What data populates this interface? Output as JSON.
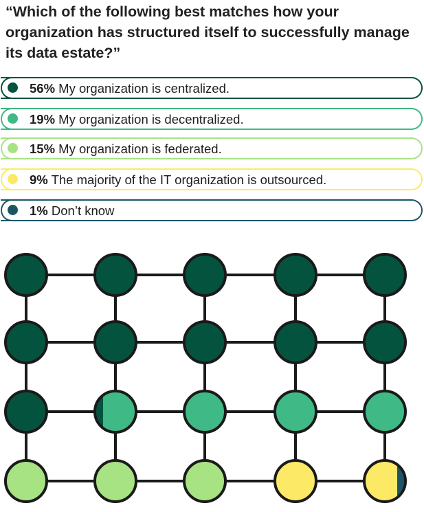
{
  "question": "“Which of the following best matches how your organization has structured itself to successfully manage its data estate?”",
  "chart_data": {
    "type": "pie",
    "title": "“Which of the following best matches how your organization has structured itself to successfully manage its data estate?”",
    "unit": "%",
    "grid": {
      "rows": 4,
      "cols": 5,
      "percent_per_dot": 5
    },
    "series": [
      {
        "pct": "56%",
        "value": 56,
        "label": "My organization is centralized.",
        "color": "#04533f"
      },
      {
        "pct": "19%",
        "value": 19,
        "label": "My organization is decentralized.",
        "color": "#3fb985"
      },
      {
        "pct": "15%",
        "value": 15,
        "label": "My organization is federated.",
        "color": "#a8e383"
      },
      {
        "pct": "9%",
        "value": 9,
        "label": "The majority of the IT organization is outsourced.",
        "color": "#fcea67"
      },
      {
        "pct": "1%",
        "value": 1,
        "label": "Don’t know",
        "color": "#1d5567"
      }
    ]
  }
}
